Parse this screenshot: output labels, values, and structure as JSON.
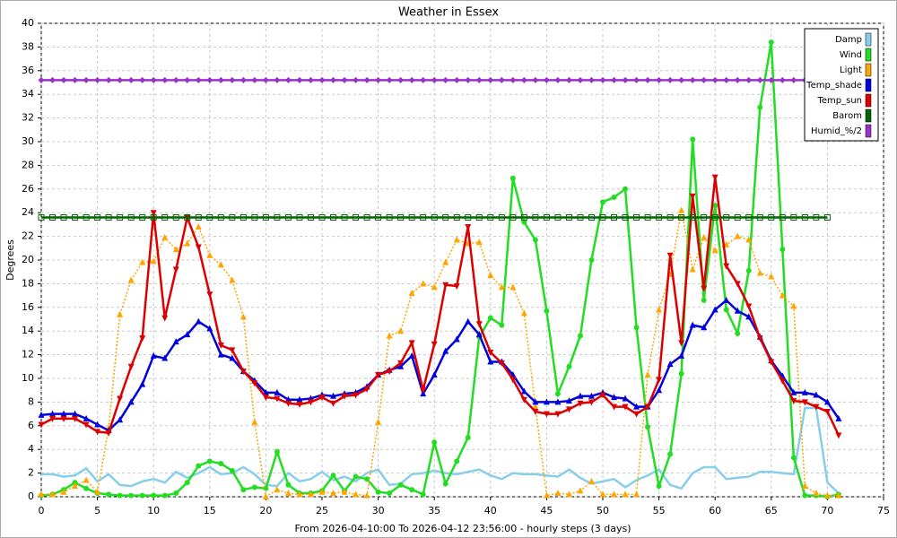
{
  "chart_data": {
    "type": "line",
    "title": "Weather in Essex",
    "x_label": "From 2026-04-10:00 To 2026-04-12 23:56:00 - hourly steps (3 days)",
    "y_label": "Degrees",
    "x": [
      0,
      1,
      2,
      3,
      4,
      5,
      6,
      7,
      8,
      9,
      10,
      11,
      12,
      13,
      14,
      15,
      16,
      17,
      18,
      19,
      20,
      21,
      22,
      23,
      24,
      25,
      26,
      27,
      28,
      29,
      30,
      31,
      32,
      33,
      34,
      35,
      36,
      37,
      38,
      39,
      40,
      41,
      42,
      43,
      44,
      45,
      46,
      47,
      48,
      49,
      50,
      51,
      52,
      53,
      54,
      55,
      56,
      57,
      58,
      59,
      60,
      61,
      62,
      63,
      64,
      65,
      66,
      67,
      68,
      69,
      70,
      71
    ],
    "xlim": [
      0,
      75
    ],
    "xticks": [
      0,
      5,
      10,
      15,
      20,
      25,
      30,
      35,
      40,
      45,
      50,
      55,
      60,
      65,
      70,
      75
    ],
    "ylim": [
      0,
      40
    ],
    "yticks": [
      0,
      2,
      4,
      6,
      8,
      10,
      12,
      14,
      16,
      18,
      20,
      22,
      24,
      26,
      28,
      30,
      32,
      34,
      36,
      38,
      40
    ],
    "grid": true,
    "legend": "top-right",
    "series": [
      {
        "name": "Damp",
        "color": "#87ceeb",
        "marker": "none",
        "dash": "solid",
        "values": [
          1.9,
          1.9,
          1.7,
          1.8,
          2.4,
          1.3,
          1.9,
          1.0,
          0.9,
          1.3,
          1.5,
          1.2,
          2.1,
          1.6,
          2.0,
          2.5,
          1.9,
          2.0,
          2.5,
          1.9,
          1.0,
          0.9,
          2.0,
          1.3,
          1.5,
          2.1,
          1.4,
          1.7,
          1.3,
          2.0,
          2.3,
          1.0,
          1.1,
          1.9,
          2.0,
          2.2,
          2.0,
          1.9,
          2.1,
          2.3,
          1.8,
          1.5,
          2.0,
          1.9,
          1.9,
          1.8,
          1.7,
          2.3,
          1.6,
          1.1,
          1.3,
          1.5,
          0.8,
          1.4,
          1.8,
          2.3,
          1.0,
          0.7,
          2.0,
          2.5,
          2.5,
          1.5,
          1.6,
          1.7,
          2.1,
          2.1,
          2.0,
          1.9,
          7.5,
          7.5,
          1.2,
          0.3
        ]
      },
      {
        "name": "Wind",
        "color": "#22dd22",
        "marker": "circle",
        "dash": "solid",
        "values": [
          0.1,
          0.2,
          0.6,
          1.2,
          0.7,
          0.3,
          0.2,
          0.1,
          0.1,
          0.1,
          0.1,
          0.1,
          0.3,
          1.2,
          2.6,
          3.0,
          2.8,
          2.2,
          0.6,
          0.8,
          0.7,
          3.8,
          1.0,
          0.3,
          0.3,
          0.5,
          1.8,
          0.5,
          1.7,
          1.5,
          0.4,
          0.3,
          1.0,
          0.6,
          0.2,
          4.6,
          1.1,
          3.0,
          5.0,
          13.5,
          15.1,
          14.5,
          26.9,
          23.2,
          21.7,
          15.7,
          8.7,
          11.0,
          13.6,
          20.0,
          24.9,
          25.3,
          26.0,
          14.3,
          5.9,
          0.9,
          3.6,
          10.4,
          30.2,
          16.6,
          24.6,
          15.8,
          13.8,
          19.1,
          32.9,
          38.4,
          20.9,
          3.3,
          0.1,
          0.1,
          0.0,
          0.2
        ]
      },
      {
        "name": "Light",
        "color": "#ffa500",
        "marker": "triangle-up",
        "dash": "dotted",
        "values": [
          0.2,
          0.2,
          0.4,
          0.9,
          1.4,
          0.4,
          5.8,
          15.4,
          18.3,
          19.8,
          19.9,
          21.9,
          20.9,
          21.4,
          22.8,
          20.4,
          19.6,
          18.3,
          15.2,
          6.3,
          0.0,
          0.6,
          0.3,
          0.2,
          0.2,
          0.4,
          0.3,
          0.4,
          0.2,
          0.1,
          6.3,
          13.6,
          14.0,
          17.2,
          18.0,
          17.7,
          19.8,
          21.7,
          21.4,
          21.5,
          18.7,
          17.7,
          17.7,
          15.5,
          7.6,
          0.1,
          0.3,
          0.2,
          0.5,
          1.3,
          0.2,
          0.2,
          0.2,
          0.2,
          10.3,
          15.8,
          18.8,
          24.2,
          19.2,
          21.9,
          20.8,
          21.3,
          22.0,
          21.7,
          18.9,
          18.6,
          17.0,
          16.1,
          0.9,
          0.3,
          0.1,
          0.1
        ]
      },
      {
        "name": "Temp_shade",
        "color": "#0000dd",
        "marker": "triangle-up",
        "dash": "solid",
        "values": [
          6.9,
          7.0,
          7.0,
          7.0,
          6.6,
          6.1,
          5.6,
          6.5,
          8.0,
          9.5,
          11.9,
          11.7,
          13.1,
          13.7,
          14.8,
          14.2,
          12.0,
          11.7,
          10.6,
          9.8,
          8.8,
          8.8,
          8.2,
          8.2,
          8.3,
          8.6,
          8.5,
          8.7,
          8.8,
          9.3,
          10.3,
          10.7,
          11.0,
          11.9,
          8.7,
          10.3,
          12.3,
          13.3,
          14.8,
          13.7,
          11.4,
          11.4,
          10.3,
          8.9,
          8.0,
          8.0,
          8.0,
          8.1,
          8.5,
          8.5,
          8.8,
          8.4,
          8.3,
          7.6,
          7.6,
          9.0,
          11.2,
          11.9,
          14.5,
          14.3,
          15.8,
          16.6,
          15.7,
          15.2,
          13.5,
          11.5,
          10.2,
          8.8,
          8.8,
          8.6,
          8.0,
          6.6
        ]
      },
      {
        "name": "Temp_sun",
        "color": "#dd0000",
        "marker": "triangle-down",
        "dash": "solid",
        "values": [
          6.1,
          6.6,
          6.6,
          6.6,
          6.1,
          5.5,
          5.4,
          8.3,
          11.0,
          13.4,
          24.0,
          15.1,
          19.2,
          23.6,
          21.1,
          17.1,
          12.8,
          12.4,
          10.6,
          9.6,
          8.4,
          8.3,
          7.9,
          7.8,
          8.0,
          8.4,
          7.9,
          8.5,
          8.6,
          9.1,
          10.3,
          10.6,
          11.3,
          13.0,
          9.0,
          12.9,
          17.9,
          17.8,
          22.8,
          14.6,
          12.2,
          11.3,
          9.9,
          8.2,
          7.2,
          7.0,
          7.0,
          7.4,
          7.9,
          8.0,
          8.6,
          7.6,
          7.6,
          7.0,
          7.6,
          9.9,
          20.4,
          13.0,
          25.4,
          17.6,
          27.0,
          19.5,
          18.0,
          16.1,
          13.4,
          11.4,
          9.8,
          8.1,
          8.0,
          7.6,
          7.2,
          5.2
        ]
      },
      {
        "name": "Barom",
        "color": "#006400",
        "marker": "square-open",
        "dash": "solid",
        "values": [
          23.6,
          23.6,
          23.6,
          23.6,
          23.6,
          23.6,
          23.6,
          23.6,
          23.6,
          23.6,
          23.6,
          23.6,
          23.6,
          23.6,
          23.6,
          23.6,
          23.6,
          23.6,
          23.6,
          23.6,
          23.6,
          23.6,
          23.6,
          23.6,
          23.6,
          23.6,
          23.6,
          23.6,
          23.6,
          23.6,
          23.6,
          23.6,
          23.6,
          23.6,
          23.6,
          23.6,
          23.6,
          23.6,
          23.6,
          23.6,
          23.6,
          23.6,
          23.6,
          23.6,
          23.6,
          23.6,
          23.6,
          23.6,
          23.6,
          23.6,
          23.6,
          23.6,
          23.6,
          23.6,
          23.6,
          23.6,
          23.6,
          23.6,
          23.6,
          23.6,
          23.6,
          23.6,
          23.6,
          23.6,
          23.6,
          23.6,
          23.6,
          23.6,
          23.6,
          23.6,
          23.6,
          null
        ]
      },
      {
        "name": "Humid_%/2",
        "color": "#9932cc",
        "marker": "diamond",
        "dash": "solid",
        "values": [
          35.2,
          35.2,
          35.2,
          35.2,
          35.2,
          35.2,
          35.2,
          35.2,
          35.2,
          35.2,
          35.2,
          35.2,
          35.2,
          35.2,
          35.2,
          35.2,
          35.2,
          35.2,
          35.2,
          35.2,
          35.2,
          35.2,
          35.2,
          35.2,
          35.2,
          35.2,
          35.2,
          35.2,
          35.2,
          35.2,
          35.2,
          35.2,
          35.2,
          35.2,
          35.2,
          35.2,
          35.2,
          35.2,
          35.2,
          35.2,
          35.2,
          35.2,
          35.2,
          35.2,
          35.2,
          35.2,
          35.2,
          35.2,
          35.2,
          35.2,
          35.2,
          35.2,
          35.2,
          35.2,
          35.2,
          35.2,
          35.2,
          35.2,
          35.2,
          35.2,
          35.2,
          35.2,
          35.2,
          35.2,
          35.2,
          35.2,
          35.2,
          35.2,
          35.2,
          35.2,
          35.2,
          35.2
        ]
      }
    ]
  }
}
